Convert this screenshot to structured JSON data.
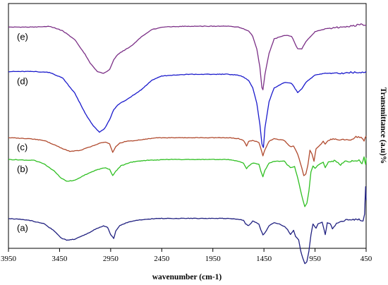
{
  "chart_data": {
    "type": "line",
    "title": "",
    "xlabel": "wavenumber (cm-1)",
    "ylabel": "Transmittance (a.u)%",
    "x_reversed": true,
    "xlim": [
      3950,
      450
    ],
    "xticks": [
      "3950",
      "3450",
      "2950",
      "2450",
      "1950",
      "1450",
      "950",
      "450"
    ],
    "yticks": [],
    "grid": false,
    "legend": "none",
    "series": [
      {
        "name": "(e)",
        "color": "#7b2f86",
        "offset": 2.4,
        "points": [
          [
            3950,
            -0.06
          ],
          [
            3700,
            -0.06
          ],
          [
            3550,
            -0.05
          ],
          [
            3420,
            -0.1
          ],
          [
            3300,
            -0.2
          ],
          [
            3200,
            -0.36
          ],
          [
            3150,
            -0.46
          ],
          [
            3080,
            -0.55
          ],
          [
            3020,
            -0.57
          ],
          [
            2960,
            -0.53
          ],
          [
            2920,
            -0.42
          ],
          [
            2880,
            -0.36
          ],
          [
            2840,
            -0.33
          ],
          [
            2750,
            -0.27
          ],
          [
            2650,
            -0.17
          ],
          [
            2550,
            -0.09
          ],
          [
            2450,
            -0.06
          ],
          [
            2200,
            -0.05
          ],
          [
            1950,
            -0.05
          ],
          [
            1800,
            -0.05
          ],
          [
            1700,
            -0.06
          ],
          [
            1650,
            -0.08
          ],
          [
            1600,
            -0.1
          ],
          [
            1560,
            -0.16
          ],
          [
            1520,
            -0.3
          ],
          [
            1490,
            -0.5
          ],
          [
            1470,
            -0.73
          ],
          [
            1460,
            -0.75
          ],
          [
            1440,
            -0.58
          ],
          [
            1400,
            -0.35
          ],
          [
            1350,
            -0.19
          ],
          [
            1250,
            -0.15
          ],
          [
            1180,
            -0.16
          ],
          [
            1120,
            -0.3
          ],
          [
            1080,
            -0.3
          ],
          [
            1040,
            -0.22
          ],
          [
            950,
            -0.11
          ],
          [
            850,
            -0.08
          ],
          [
            700,
            -0.06
          ],
          [
            600,
            -0.05
          ],
          [
            500,
            -0.03
          ],
          [
            450,
            -0.04
          ]
        ]
      },
      {
        "name": "(d)",
        "color": "#1a1acc",
        "offset": 1.85,
        "points": [
          [
            3950,
            0.0
          ],
          [
            3700,
            0.0
          ],
          [
            3550,
            -0.01
          ],
          [
            3420,
            -0.07
          ],
          [
            3300,
            -0.24
          ],
          [
            3200,
            -0.46
          ],
          [
            3120,
            -0.6
          ],
          [
            3060,
            -0.67
          ],
          [
            3010,
            -0.63
          ],
          [
            2960,
            -0.53
          ],
          [
            2920,
            -0.42
          ],
          [
            2880,
            -0.37
          ],
          [
            2840,
            -0.34
          ],
          [
            2780,
            -0.3
          ],
          [
            2650,
            -0.2
          ],
          [
            2550,
            -0.1
          ],
          [
            2450,
            -0.05
          ],
          [
            2200,
            -0.03
          ],
          [
            1950,
            -0.03
          ],
          [
            1800,
            -0.03
          ],
          [
            1700,
            -0.04
          ],
          [
            1650,
            -0.06
          ],
          [
            1600,
            -0.1
          ],
          [
            1560,
            -0.18
          ],
          [
            1520,
            -0.35
          ],
          [
            1490,
            -0.58
          ],
          [
            1470,
            -0.8
          ],
          [
            1455,
            -0.84
          ],
          [
            1440,
            -0.62
          ],
          [
            1400,
            -0.33
          ],
          [
            1350,
            -0.18
          ],
          [
            1250,
            -0.12
          ],
          [
            1180,
            -0.13
          ],
          [
            1120,
            -0.23
          ],
          [
            1080,
            -0.19
          ],
          [
            1040,
            -0.12
          ],
          [
            950,
            -0.04
          ],
          [
            850,
            -0.02
          ],
          [
            700,
            -0.02
          ],
          [
            600,
            -0.01
          ],
          [
            500,
            -0.01
          ],
          [
            450,
            0.0
          ]
        ]
      },
      {
        "name": "(c)",
        "color": "#b04a2e",
        "offset": 1.12,
        "points": [
          [
            3950,
            0.0
          ],
          [
            3750,
            -0.01
          ],
          [
            3600,
            -0.03
          ],
          [
            3500,
            -0.08
          ],
          [
            3420,
            -0.12
          ],
          [
            3350,
            -0.15
          ],
          [
            3250,
            -0.14
          ],
          [
            3150,
            -0.1
          ],
          [
            3050,
            -0.06
          ],
          [
            3000,
            -0.05
          ],
          [
            2960,
            -0.07
          ],
          [
            2930,
            -0.16
          ],
          [
            2900,
            -0.1
          ],
          [
            2860,
            -0.06
          ],
          [
            2800,
            -0.04
          ],
          [
            2700,
            -0.03
          ],
          [
            2500,
            0.0
          ],
          [
            2200,
            0.0
          ],
          [
            1950,
            0.0
          ],
          [
            1800,
            0.0
          ],
          [
            1700,
            -0.01
          ],
          [
            1650,
            -0.03
          ],
          [
            1620,
            -0.09
          ],
          [
            1600,
            -0.04
          ],
          [
            1560,
            -0.03
          ],
          [
            1500,
            -0.05
          ],
          [
            1480,
            -0.12
          ],
          [
            1460,
            -0.2
          ],
          [
            1440,
            -0.13
          ],
          [
            1400,
            -0.04
          ],
          [
            1350,
            -0.01
          ],
          [
            1250,
            -0.03
          ],
          [
            1220,
            -0.07
          ],
          [
            1190,
            -0.1
          ],
          [
            1160,
            -0.09
          ],
          [
            1120,
            -0.18
          ],
          [
            1080,
            -0.33
          ],
          [
            1060,
            -0.42
          ],
          [
            1040,
            -0.4
          ],
          [
            1020,
            -0.3
          ],
          [
            1000,
            -0.14
          ],
          [
            980,
            -0.18
          ],
          [
            960,
            -0.26
          ],
          [
            940,
            -0.12
          ],
          [
            900,
            -0.08
          ],
          [
            870,
            -0.04
          ],
          [
            850,
            -0.07
          ],
          [
            820,
            -0.03
          ],
          [
            750,
            -0.01
          ],
          [
            700,
            -0.03
          ],
          [
            650,
            -0.02
          ],
          [
            600,
            -0.03
          ],
          [
            550,
            0.01
          ],
          [
            500,
            0.0
          ],
          [
            470,
            -0.03
          ],
          [
            450,
            0.02
          ]
        ]
      },
      {
        "name": "(b)",
        "color": "#2fbf22",
        "offset": 0.88,
        "points": [
          [
            3950,
            0.0
          ],
          [
            3700,
            -0.01
          ],
          [
            3600,
            -0.05
          ],
          [
            3500,
            -0.13
          ],
          [
            3430,
            -0.21
          ],
          [
            3380,
            -0.24
          ],
          [
            3300,
            -0.23
          ],
          [
            3200,
            -0.17
          ],
          [
            3100,
            -0.12
          ],
          [
            3000,
            -0.09
          ],
          [
            2960,
            -0.11
          ],
          [
            2930,
            -0.18
          ],
          [
            2900,
            -0.13
          ],
          [
            2850,
            -0.07
          ],
          [
            2750,
            -0.03
          ],
          [
            2600,
            -0.01
          ],
          [
            2400,
            0.0
          ],
          [
            2200,
            0.0
          ],
          [
            1950,
            0.0
          ],
          [
            1800,
            0.0
          ],
          [
            1700,
            -0.02
          ],
          [
            1650,
            -0.04
          ],
          [
            1620,
            -0.1
          ],
          [
            1600,
            -0.07
          ],
          [
            1560,
            -0.04
          ],
          [
            1500,
            -0.05
          ],
          [
            1480,
            -0.13
          ],
          [
            1460,
            -0.19
          ],
          [
            1440,
            -0.12
          ],
          [
            1400,
            -0.04
          ],
          [
            1350,
            -0.02
          ],
          [
            1250,
            -0.02
          ],
          [
            1220,
            -0.06
          ],
          [
            1190,
            -0.09
          ],
          [
            1150,
            -0.08
          ],
          [
            1120,
            -0.2
          ],
          [
            1080,
            -0.4
          ],
          [
            1050,
            -0.52
          ],
          [
            1030,
            -0.48
          ],
          [
            1010,
            -0.35
          ],
          [
            990,
            -0.14
          ],
          [
            970,
            -0.07
          ],
          [
            950,
            -0.1
          ],
          [
            920,
            -0.06
          ],
          [
            870,
            -0.03
          ],
          [
            850,
            -0.09
          ],
          [
            820,
            -0.03
          ],
          [
            750,
            -0.01
          ],
          [
            700,
            -0.06
          ],
          [
            660,
            -0.02
          ],
          [
            600,
            -0.02
          ],
          [
            520,
            -0.01
          ],
          [
            490,
            -0.04
          ],
          [
            470,
            0.03
          ],
          [
            455,
            -0.06
          ],
          [
            450,
            0.02
          ]
        ]
      },
      {
        "name": "(a)",
        "color": "#202080",
        "offset": 0.23,
        "points": [
          [
            3950,
            0.0
          ],
          [
            3750,
            -0.02
          ],
          [
            3600,
            -0.06
          ],
          [
            3500,
            -0.14
          ],
          [
            3430,
            -0.22
          ],
          [
            3380,
            -0.24
          ],
          [
            3300,
            -0.23
          ],
          [
            3200,
            -0.18
          ],
          [
            3100,
            -0.12
          ],
          [
            3020,
            -0.08
          ],
          [
            2980,
            -0.1
          ],
          [
            2950,
            -0.18
          ],
          [
            2920,
            -0.22
          ],
          [
            2900,
            -0.14
          ],
          [
            2860,
            -0.08
          ],
          [
            2800,
            -0.05
          ],
          [
            2700,
            -0.02
          ],
          [
            2500,
            0.0
          ],
          [
            2200,
            0.0
          ],
          [
            1950,
            0.0
          ],
          [
            1800,
            0.0
          ],
          [
            1700,
            -0.01
          ],
          [
            1650,
            -0.02
          ],
          [
            1630,
            -0.06
          ],
          [
            1600,
            -0.08
          ],
          [
            1560,
            -0.03
          ],
          [
            1500,
            -0.06
          ],
          [
            1480,
            -0.13
          ],
          [
            1460,
            -0.18
          ],
          [
            1440,
            -0.16
          ],
          [
            1400,
            -0.08
          ],
          [
            1350,
            -0.05
          ],
          [
            1300,
            -0.06
          ],
          [
            1250,
            -0.09
          ],
          [
            1220,
            -0.12
          ],
          [
            1190,
            -0.18
          ],
          [
            1160,
            -0.13
          ],
          [
            1140,
            -0.2
          ],
          [
            1110,
            -0.24
          ],
          [
            1090,
            -0.36
          ],
          [
            1070,
            -0.44
          ],
          [
            1050,
            -0.5
          ],
          [
            1030,
            -0.48
          ],
          [
            1010,
            -0.36
          ],
          [
            990,
            -0.18
          ],
          [
            970,
            -0.06
          ],
          [
            940,
            -0.11
          ],
          [
            920,
            -0.06
          ],
          [
            880,
            -0.04
          ],
          [
            850,
            -0.18
          ],
          [
            830,
            -0.05
          ],
          [
            800,
            -0.06
          ],
          [
            780,
            -0.12
          ],
          [
            740,
            -0.06
          ],
          [
            700,
            -0.04
          ],
          [
            650,
            -0.02
          ],
          [
            600,
            -0.02
          ],
          [
            520,
            -0.01
          ],
          [
            480,
            -0.03
          ],
          [
            465,
            0.05
          ],
          [
            455,
            0.35
          ],
          [
            450,
            0.2
          ]
        ]
      }
    ]
  }
}
